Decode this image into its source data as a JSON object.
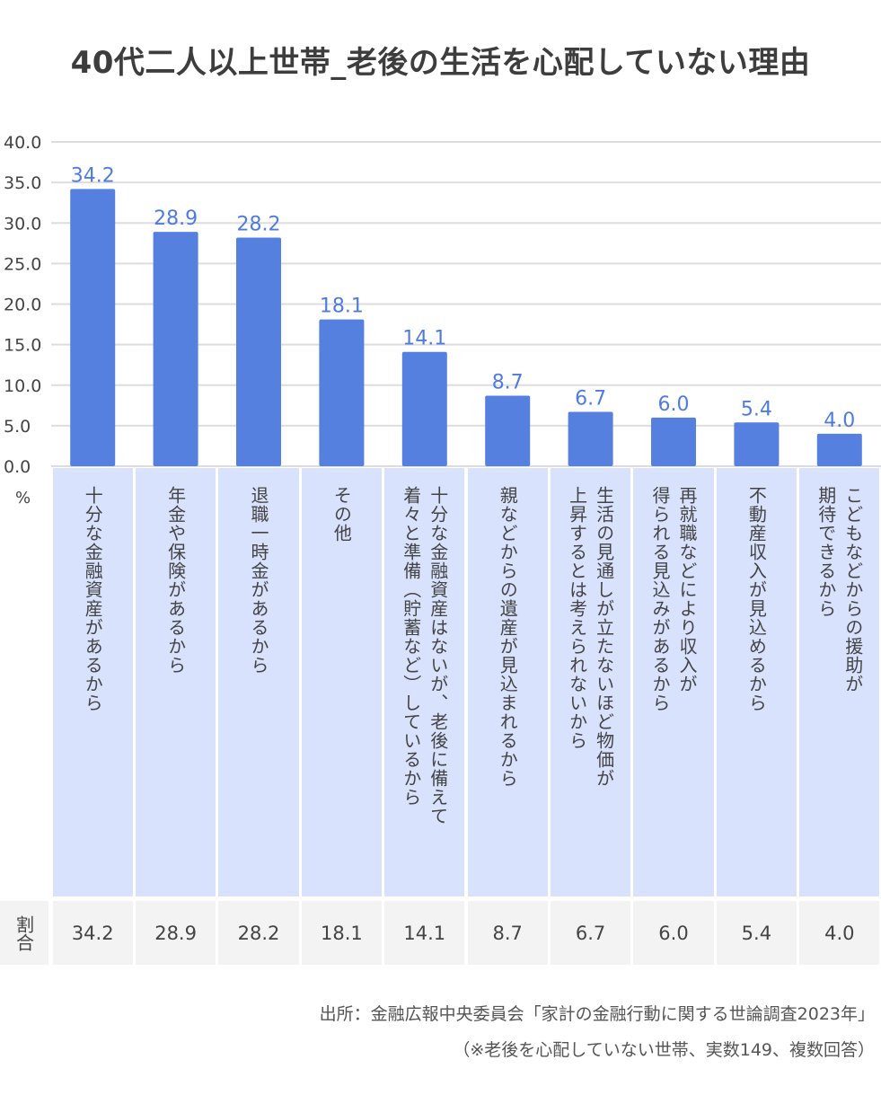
{
  "chart_data": {
    "type": "bar",
    "title": "40代二人以上世帯_老後の生活を心配していない理由",
    "ylabel": "%",
    "ylim": [
      0,
      40
    ],
    "yticks": [
      "0.0",
      "5.0",
      "10.0",
      "15.0",
      "20.0",
      "25.0",
      "30.0",
      "35.0",
      "40.0"
    ],
    "grid": true,
    "categories": [
      "十分な金融資産があるから",
      "年金や保険があるから",
      "退職一時金があるから",
      "その他",
      "十分な金融資産はないが、老後に備えて\n着々と準備（貯蓄など）しているから",
      "親などからの遺産が見込まれるから",
      "生活の見通しが立たないほど物価が\n上昇するとは考えられないから",
      "再就職などにより収入が\n得られる見込みがあるから",
      "不動産収入が見込めるから",
      "こどもなどからの援助が\n期待できるから"
    ],
    "values": [
      34.2,
      28.9,
      28.2,
      18.1,
      14.1,
      8.7,
      6.7,
      6.0,
      5.4,
      4.0
    ],
    "data_labels": [
      "34.2",
      "28.9",
      "28.2",
      "18.1",
      "14.1",
      "8.7",
      "6.7",
      "6.0",
      "5.4",
      "4.0"
    ],
    "bar_color": "#5580e0",
    "label_color": "#4f7be0",
    "table": {
      "row_header": "割合",
      "values": [
        "34.2",
        "28.9",
        "28.2",
        "18.1",
        "14.1",
        "8.7",
        "6.7",
        "6.0",
        "5.4",
        "4.0"
      ]
    }
  },
  "footer": {
    "source": "出所：金融広報中央委員会「家計の金融行動に関する世論調査2023年」",
    "note": "（※老後を心配していない世帯、実数149、複数回答）"
  }
}
